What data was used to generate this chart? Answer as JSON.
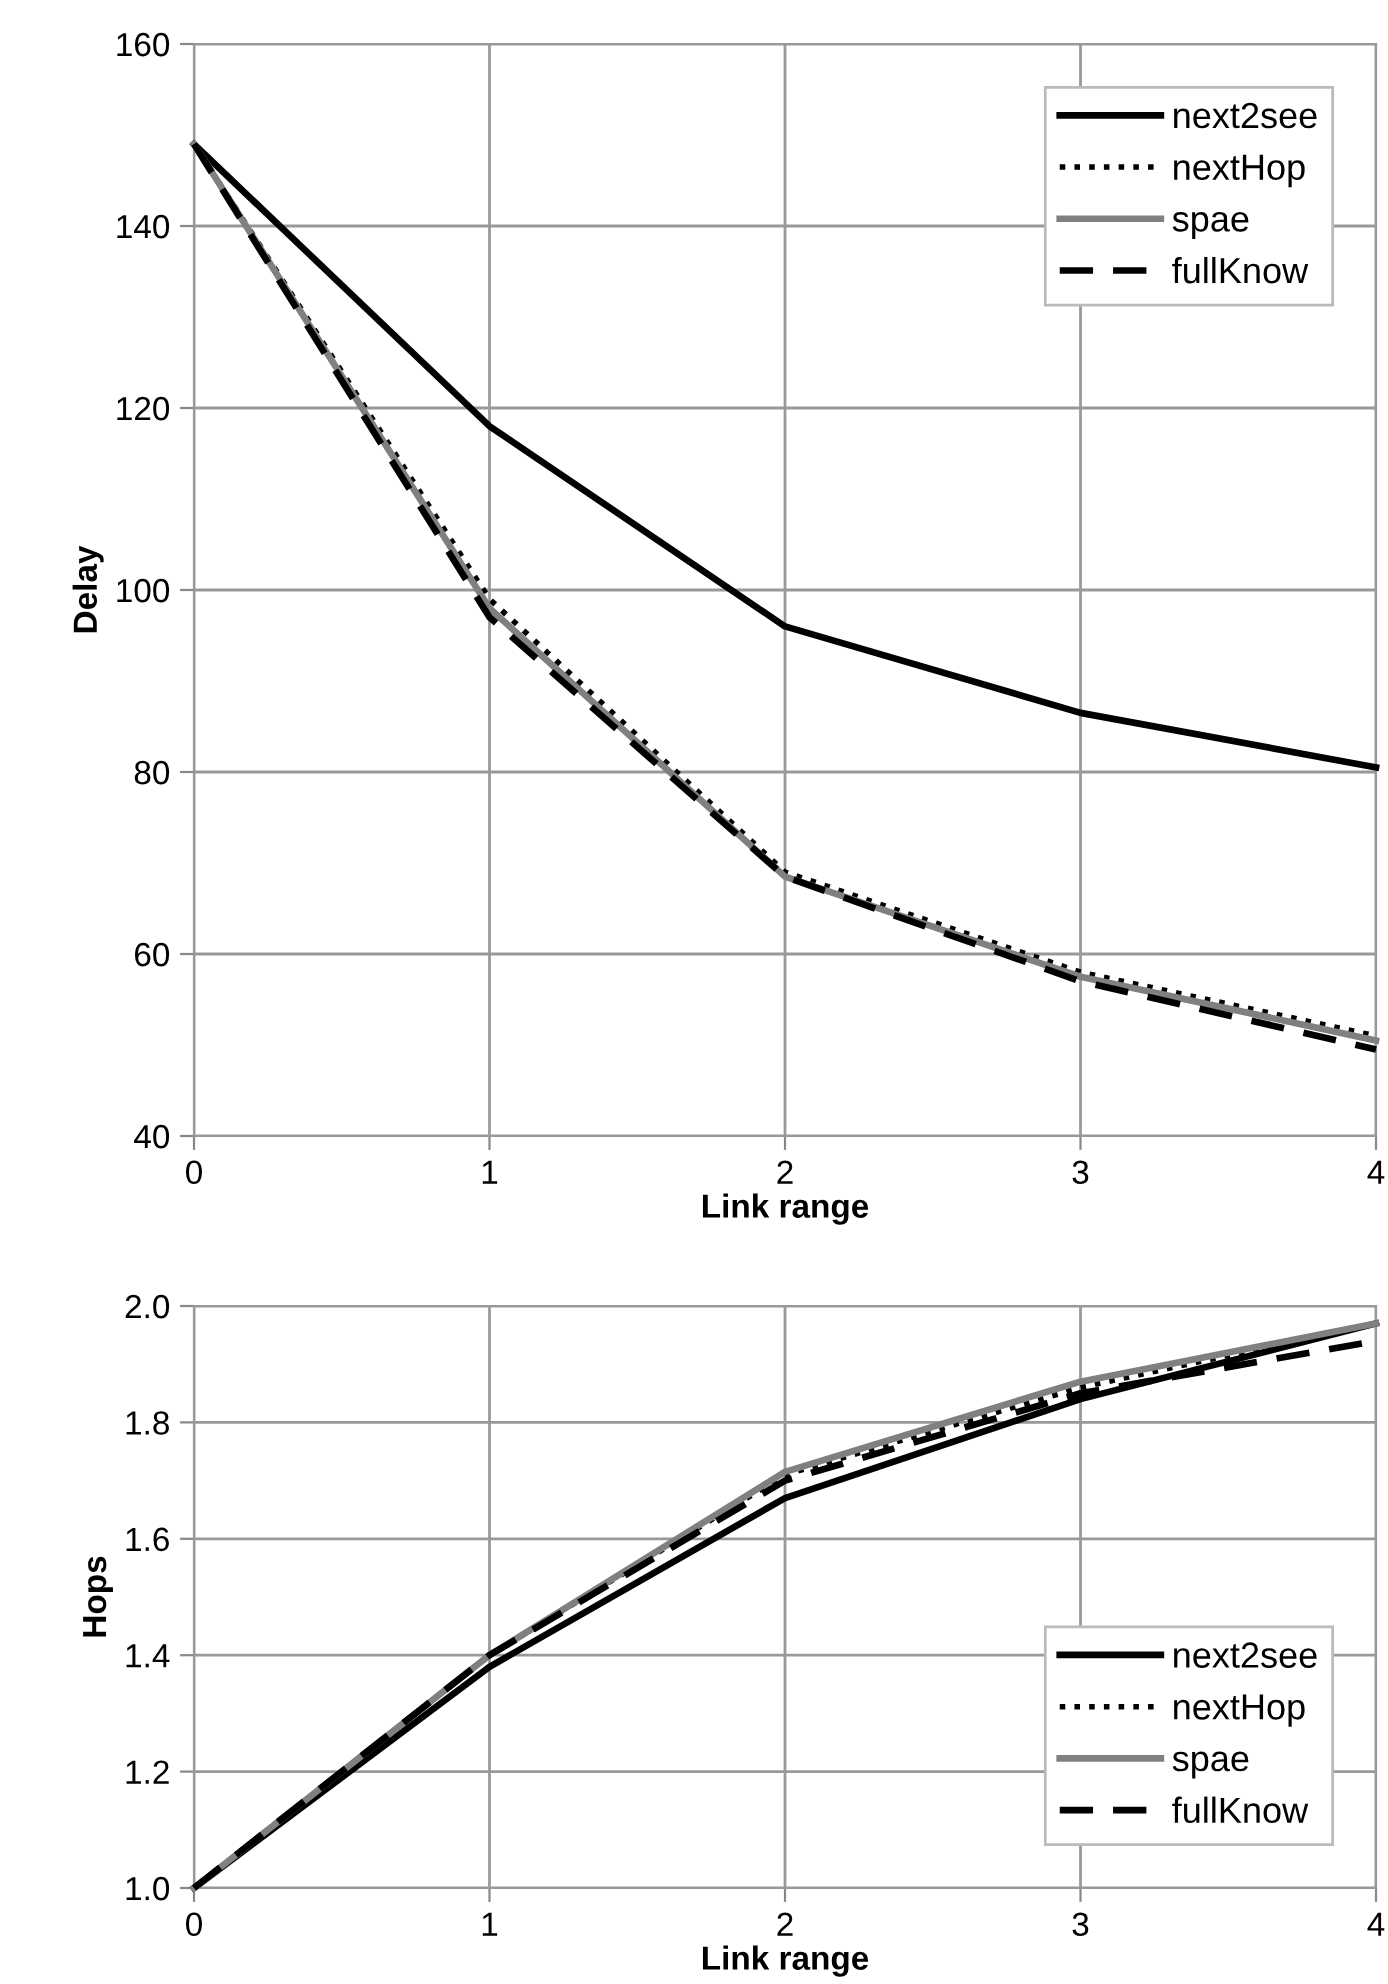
{
  "chart_data": [
    {
      "type": "line",
      "xlabel": "Link range",
      "ylabel": "Delay",
      "x": [
        0,
        1,
        2,
        3,
        4
      ],
      "xlim": [
        0,
        4
      ],
      "xticks": [
        0,
        1,
        2,
        3,
        4
      ],
      "ylim": [
        40,
        160
      ],
      "yticks": [
        40,
        60,
        80,
        100,
        120,
        140,
        160
      ],
      "grid": true,
      "legend": "top right",
      "series": [
        {
          "name": "next2see",
          "color": "#000000",
          "line_style": "solid",
          "values": [
            149,
            118,
            96,
            86.5,
            80.5
          ]
        },
        {
          "name": "nextHop",
          "color": "#000000",
          "line_style": "dotted",
          "values": [
            149,
            99,
            69,
            58,
            51
          ]
        },
        {
          "name": "spae",
          "color": "#808080",
          "line_style": "solid",
          "values": [
            149,
            98,
            68.5,
            57.5,
            50.5
          ]
        },
        {
          "name": "fullKnow",
          "color": "#000000",
          "line_style": "dashed",
          "values": [
            149,
            97,
            68.5,
            57,
            49.5
          ]
        }
      ]
    },
    {
      "type": "line",
      "xlabel": "Link range",
      "ylabel": "Hops",
      "x": [
        0,
        1,
        2,
        3,
        4
      ],
      "xlim": [
        0,
        4
      ],
      "xticks": [
        0,
        1,
        2,
        3,
        4
      ],
      "ylim": [
        1.0,
        2.0
      ],
      "yticks": [
        {
          "value": 1.0,
          "label": "1.0"
        },
        {
          "value": 1.2,
          "label": "1.2"
        },
        {
          "value": 1.4,
          "label": "1.4"
        },
        {
          "value": 1.6,
          "label": "1.6"
        },
        {
          "value": 1.8,
          "label": "1.8"
        },
        {
          "value": 2.0,
          "label": "2.0"
        }
      ],
      "grid": true,
      "legend": "bottom right",
      "series": [
        {
          "name": "next2see",
          "color": "#000000",
          "line_style": "solid",
          "values": [
            1.0,
            1.38,
            1.67,
            1.84,
            1.97
          ]
        },
        {
          "name": "nextHop",
          "color": "#000000",
          "line_style": "dotted",
          "values": [
            1.0,
            1.4,
            1.71,
            1.86,
            1.97
          ]
        },
        {
          "name": "spae",
          "color": "#808080",
          "line_style": "solid",
          "values": [
            1.0,
            1.4,
            1.715,
            1.87,
            1.97
          ]
        },
        {
          "name": "fullKnow",
          "color": "#000000",
          "line_style": "dashed",
          "values": [
            1.0,
            1.4,
            1.7,
            1.85,
            1.94
          ]
        }
      ]
    }
  ]
}
